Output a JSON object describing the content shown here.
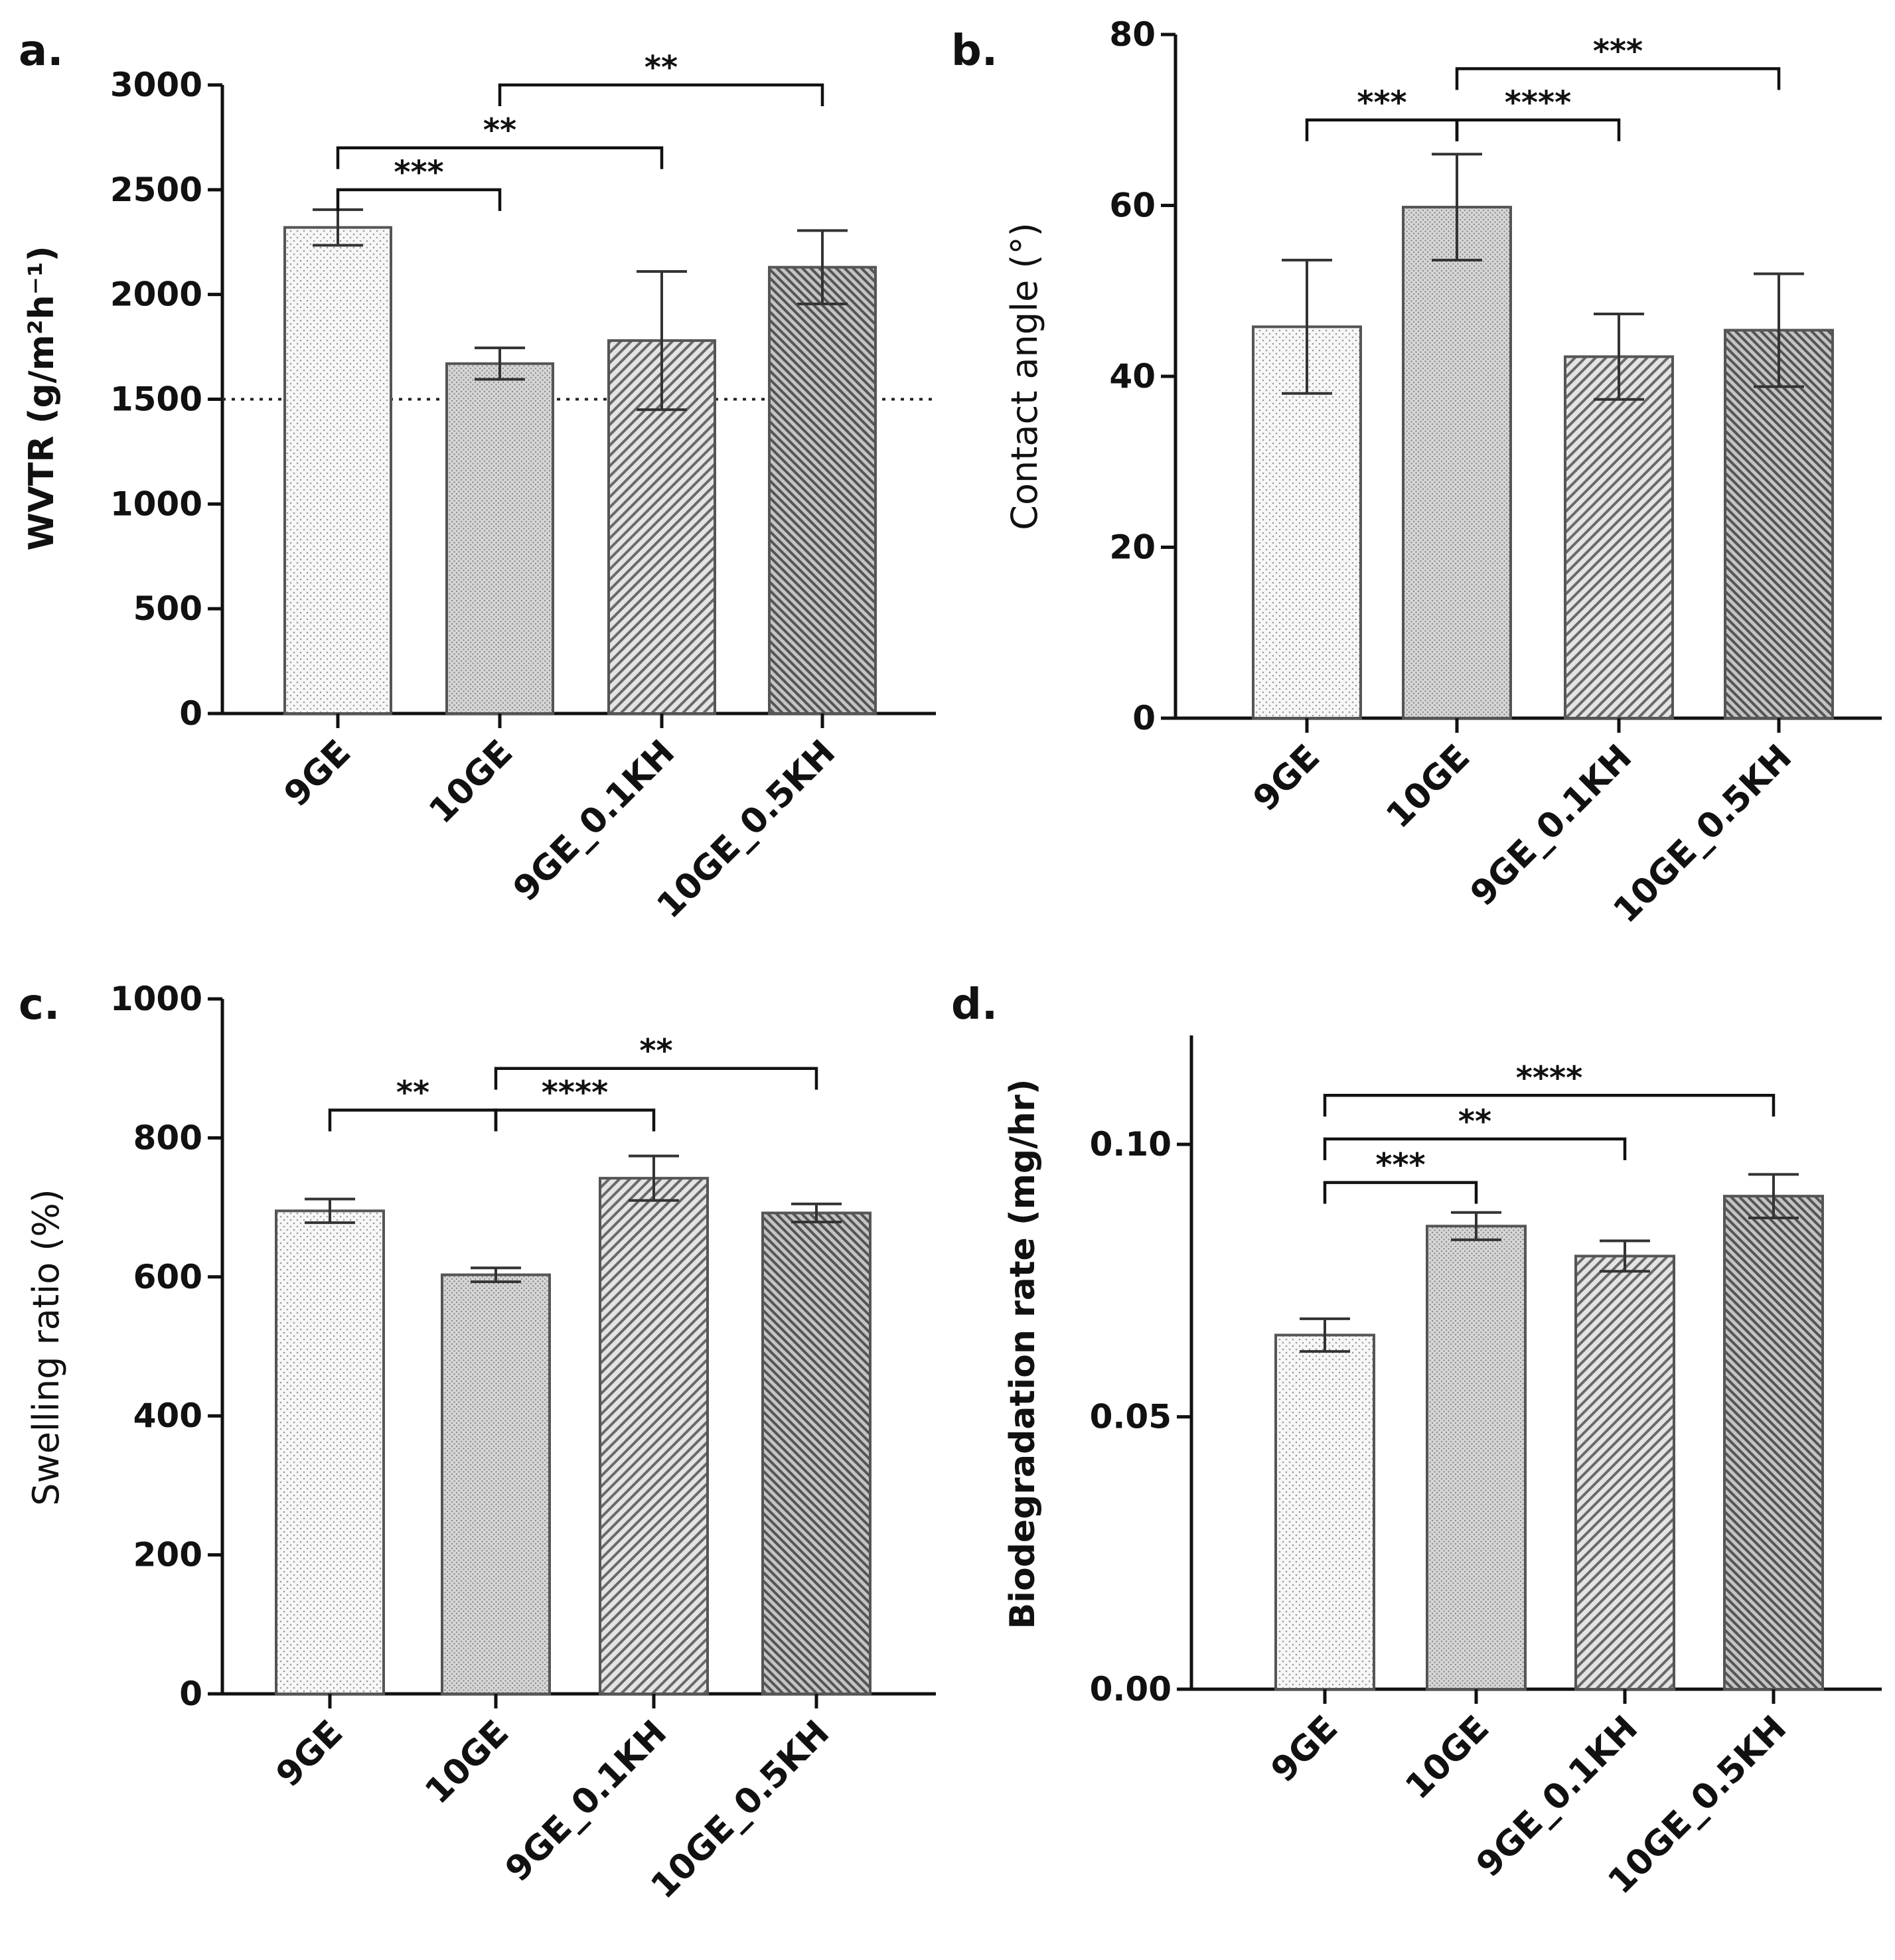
{
  "chart_data": [
    {
      "panel": "a.",
      "type": "bar",
      "title": "",
      "xlabel": "",
      "ylabel": "WVTR (g/m²h⁻¹)",
      "ylabel_bold": true,
      "ylim": [
        0,
        3000
      ],
      "yticks": [
        "0",
        "500",
        "1000",
        "1500",
        "2000",
        "2500",
        "3000"
      ],
      "categories": [
        "9GE",
        "10GE",
        "9GE_0.1KH",
        "10GE_0.5KH"
      ],
      "values": [
        2320,
        1670,
        1780,
        2130
      ],
      "errors": [
        85,
        75,
        330,
        175
      ],
      "reference_line": 1500,
      "significance": [
        {
          "from": "10GE",
          "to": "10GE_0.5KH",
          "label": "**",
          "level": 3000
        },
        {
          "from": "9GE",
          "to": "9GE_0.1KH",
          "label": "**",
          "level": 2700
        },
        {
          "from": "9GE",
          "to": "10GE",
          "label": "***",
          "level": 2500
        }
      ]
    },
    {
      "panel": "b.",
      "type": "bar",
      "title": "",
      "xlabel": "",
      "ylabel": "Contact angle (°)",
      "ylabel_bold": false,
      "ylim": [
        0,
        80
      ],
      "yticks": [
        "0",
        "20",
        "40",
        "60",
        "80"
      ],
      "categories": [
        "9GE",
        "10GE",
        "9GE_0.1KH",
        "10GE_0.5KH"
      ],
      "values": [
        45.8,
        59.8,
        42.3,
        45.4
      ],
      "errors": [
        7.8,
        6.2,
        5.0,
        6.6
      ],
      "significance": [
        {
          "from": "10GE",
          "to": "10GE_0.5KH",
          "label": "***",
          "level": 76
        },
        {
          "from": "9GE",
          "to": "10GE",
          "label": "***",
          "level": 70
        },
        {
          "from": "10GE",
          "to": "9GE_0.1KH",
          "label": "****",
          "level": 70
        }
      ]
    },
    {
      "panel": "c.",
      "type": "bar",
      "title": "",
      "xlabel": "",
      "ylabel": "Swelling ratio (%)",
      "ylabel_bold": false,
      "ylim": [
        0,
        1000
      ],
      "yticks": [
        "0",
        "200",
        "400",
        "600",
        "800",
        "1000"
      ],
      "categories": [
        "9GE",
        "10GE",
        "9GE_0.1KH",
        "10GE_0.5KH"
      ],
      "values": [
        695,
        603,
        742,
        692
      ],
      "errors": [
        17,
        10,
        32,
        13
      ],
      "significance": [
        {
          "from": "10GE",
          "to": "10GE_0.5KH",
          "label": "**",
          "level": 900
        },
        {
          "from": "9GE",
          "to": "10GE",
          "label": "**",
          "level": 840
        },
        {
          "from": "10GE",
          "to": "9GE_0.1KH",
          "label": "****",
          "level": 840
        }
      ]
    },
    {
      "panel": "d.",
      "type": "bar",
      "title": "",
      "xlabel": "",
      "ylabel": "Biodegradation rate (mg/hr)",
      "ylabel_bold": true,
      "ylim": [
        0,
        0.12
      ],
      "yticks": [
        "0.00",
        "0.05",
        "0.10"
      ],
      "ytick_values": [
        0,
        0.05,
        0.1
      ],
      "categories": [
        "9GE",
        "10GE",
        "9GE_0.1KH",
        "10GE_0.5KH"
      ],
      "values": [
        0.065,
        0.085,
        0.0795,
        0.0905
      ],
      "errors": [
        0.003,
        0.0025,
        0.0028,
        0.004
      ],
      "significance": [
        {
          "from": "9GE",
          "to": "10GE_0.5KH",
          "label": "****",
          "level": 0.109
        },
        {
          "from": "9GE",
          "to": "9GE_0.1KH",
          "label": "**",
          "level": 0.101
        },
        {
          "from": "9GE",
          "to": "10GE",
          "label": "***",
          "level": 0.093
        }
      ]
    }
  ]
}
